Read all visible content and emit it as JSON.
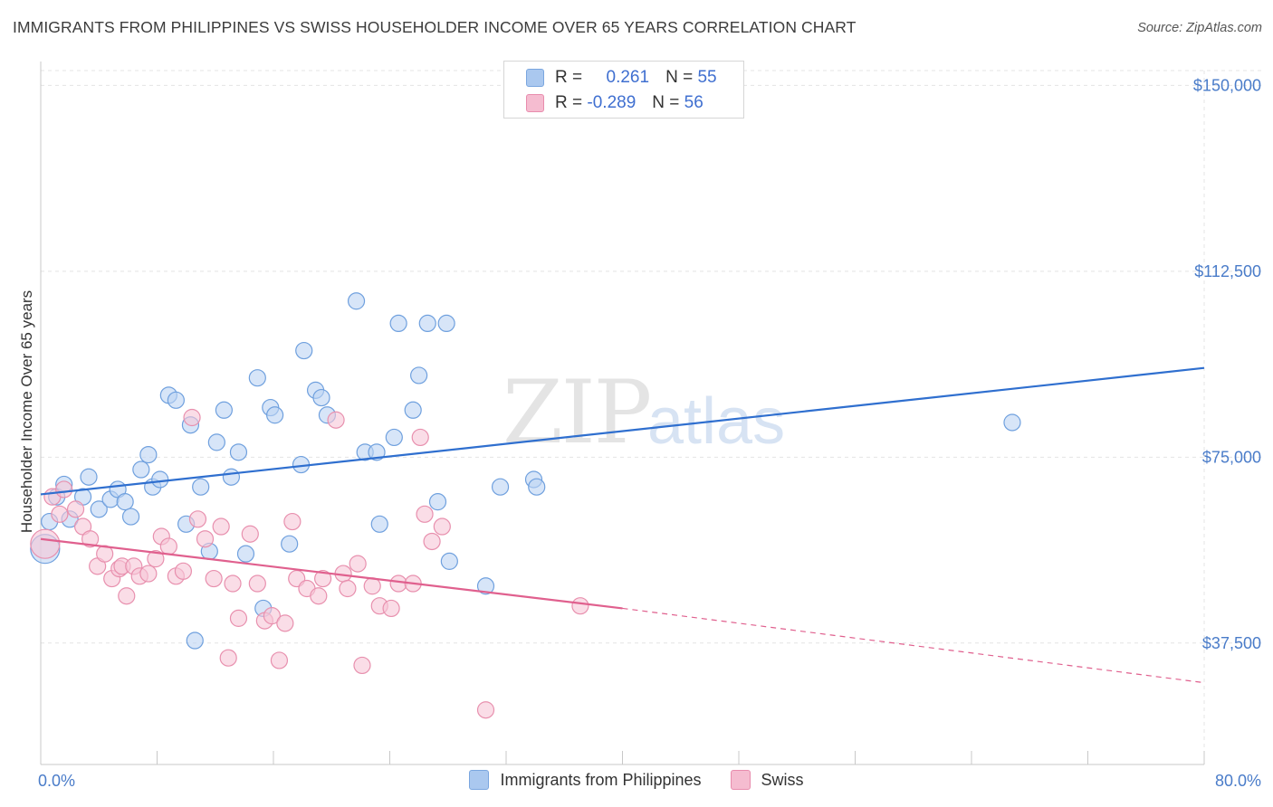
{
  "title": "IMMIGRANTS FROM PHILIPPINES VS SWISS HOUSEHOLDER INCOME OVER 65 YEARS CORRELATION CHART",
  "source": "Source: ZipAtlas.com",
  "watermark": {
    "zip": "ZIP",
    "atlas": "atlas"
  },
  "legend": {
    "r_label": "R =",
    "n_label": "N =",
    "rows": [
      {
        "r": "0.261",
        "n": "55",
        "color": "#aac8ef",
        "border": "#7aa6df"
      },
      {
        "r": "-0.289",
        "n": "56",
        "color": "#f5bcd0",
        "border": "#e88cad"
      }
    ]
  },
  "bottom_legend": [
    {
      "label": "Immigrants from Philippines",
      "color": "#aac8ef",
      "border": "#7aa6df"
    },
    {
      "label": "Swiss",
      "color": "#f5bcd0",
      "border": "#e88cad"
    }
  ],
  "chart_data": {
    "type": "scatter",
    "ylabel": "Householder Income Over 65 years",
    "x_tick_labels": [
      "0.0%",
      "80.0%"
    ],
    "y_tick_labels": [
      "$150,000",
      "$112,500",
      "$75,000",
      "$37,500"
    ],
    "y_ticks": [
      150000,
      112500,
      75000,
      37500
    ],
    "xlim": [
      0,
      80
    ],
    "ylim": [
      13000,
      153000
    ],
    "grid": true,
    "legend_position": "top-center",
    "series": [
      {
        "name": "Immigrants from Philippines",
        "color": "#6fa0de",
        "fill": "#bcd4f3",
        "trend": {
          "x0": 0,
          "y0": 67500,
          "x1": 80,
          "y1": 93000
        },
        "points": [
          [
            0.3,
            56500
          ],
          [
            0.6,
            62000
          ],
          [
            1.1,
            67000
          ],
          [
            1.6,
            69500
          ],
          [
            2.0,
            62500
          ],
          [
            2.9,
            67000
          ],
          [
            3.3,
            71000
          ],
          [
            4.0,
            64500
          ],
          [
            4.8,
            66500
          ],
          [
            5.3,
            68500
          ],
          [
            5.8,
            66000
          ],
          [
            6.2,
            63000
          ],
          [
            6.9,
            72500
          ],
          [
            7.4,
            75500
          ],
          [
            7.7,
            69000
          ],
          [
            8.2,
            70500
          ],
          [
            8.8,
            87500
          ],
          [
            9.3,
            86500
          ],
          [
            10.0,
            61500
          ],
          [
            10.3,
            81500
          ],
          [
            10.6,
            38000
          ],
          [
            11.0,
            69000
          ],
          [
            11.6,
            56000
          ],
          [
            12.1,
            78000
          ],
          [
            12.6,
            84500
          ],
          [
            13.1,
            71000
          ],
          [
            13.6,
            76000
          ],
          [
            14.1,
            55500
          ],
          [
            14.9,
            91000
          ],
          [
            15.3,
            44500
          ],
          [
            15.8,
            85000
          ],
          [
            16.1,
            83500
          ],
          [
            17.1,
            57500
          ],
          [
            17.9,
            73500
          ],
          [
            18.1,
            96500
          ],
          [
            18.9,
            88500
          ],
          [
            19.3,
            87000
          ],
          [
            19.7,
            83500
          ],
          [
            21.7,
            106500
          ],
          [
            22.3,
            76000
          ],
          [
            23.1,
            76000
          ],
          [
            23.3,
            61500
          ],
          [
            24.3,
            79000
          ],
          [
            24.6,
            102000
          ],
          [
            25.6,
            84500
          ],
          [
            26.0,
            91500
          ],
          [
            26.6,
            102000
          ],
          [
            27.3,
            66000
          ],
          [
            27.9,
            102000
          ],
          [
            28.1,
            54000
          ],
          [
            30.6,
            49000
          ],
          [
            31.6,
            69000
          ],
          [
            33.9,
            70500
          ],
          [
            34.1,
            69000
          ],
          [
            66.8,
            82000
          ]
        ]
      },
      {
        "name": "Swiss",
        "color": "#e890ae",
        "fill": "#f7c6d7",
        "trend": {
          "x0": 0,
          "y0": 58500,
          "x1": 40,
          "y1": 44500,
          "dash_x1": 80,
          "dash_y1": 29500
        },
        "points": [
          [
            0.3,
            57500
          ],
          [
            0.8,
            67000
          ],
          [
            1.3,
            63500
          ],
          [
            1.6,
            68500
          ],
          [
            2.4,
            64500
          ],
          [
            2.9,
            61000
          ],
          [
            3.4,
            58500
          ],
          [
            3.9,
            53000
          ],
          [
            4.4,
            55500
          ],
          [
            4.9,
            50500
          ],
          [
            5.4,
            52500
          ],
          [
            5.6,
            53000
          ],
          [
            5.9,
            47000
          ],
          [
            6.4,
            53000
          ],
          [
            6.8,
            51000
          ],
          [
            7.4,
            51500
          ],
          [
            7.9,
            54500
          ],
          [
            8.3,
            59000
          ],
          [
            8.8,
            57000
          ],
          [
            9.3,
            51000
          ],
          [
            9.8,
            52000
          ],
          [
            10.4,
            83000
          ],
          [
            10.8,
            62500
          ],
          [
            11.3,
            58500
          ],
          [
            11.9,
            50500
          ],
          [
            12.4,
            61000
          ],
          [
            12.9,
            34500
          ],
          [
            13.2,
            49500
          ],
          [
            13.6,
            42500
          ],
          [
            14.4,
            59500
          ],
          [
            14.9,
            49500
          ],
          [
            15.4,
            42000
          ],
          [
            15.9,
            43000
          ],
          [
            16.4,
            34000
          ],
          [
            16.8,
            41500
          ],
          [
            17.3,
            62000
          ],
          [
            17.6,
            50500
          ],
          [
            18.3,
            48500
          ],
          [
            19.1,
            47000
          ],
          [
            19.4,
            50500
          ],
          [
            20.3,
            82500
          ],
          [
            20.8,
            51500
          ],
          [
            21.1,
            48500
          ],
          [
            21.8,
            53500
          ],
          [
            22.1,
            33000
          ],
          [
            22.8,
            49000
          ],
          [
            23.3,
            45000
          ],
          [
            24.1,
            44500
          ],
          [
            24.6,
            49500
          ],
          [
            25.6,
            49500
          ],
          [
            26.1,
            79000
          ],
          [
            26.4,
            63500
          ],
          [
            26.9,
            58000
          ],
          [
            27.6,
            61000
          ],
          [
            30.6,
            24000
          ],
          [
            37.1,
            45000
          ]
        ]
      }
    ]
  }
}
